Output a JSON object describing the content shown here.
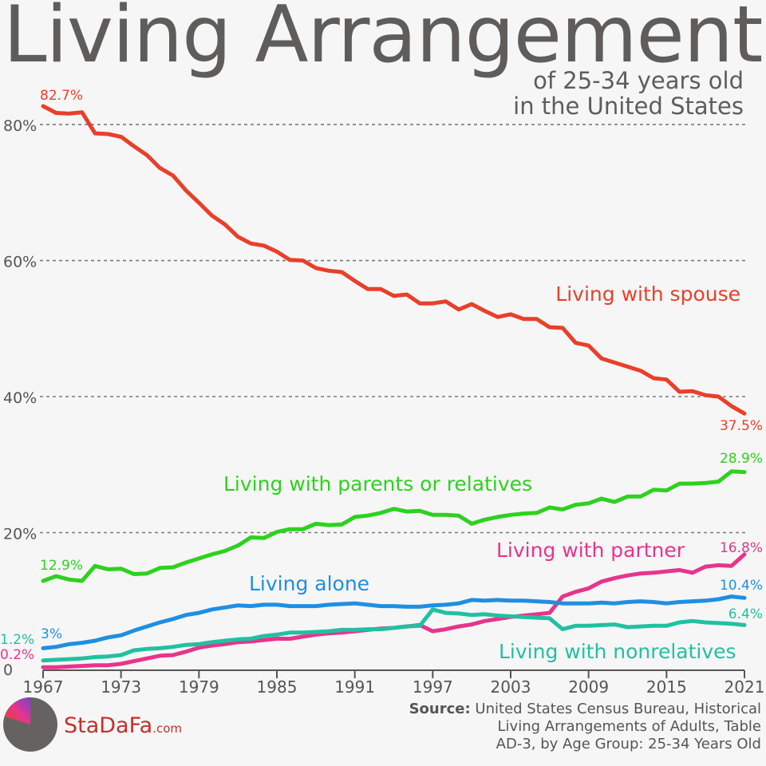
{
  "title": "Living Arrangements",
  "subtitle": [
    "of 25-34 years old",
    "in the United States"
  ],
  "brand": {
    "name": "StaDaFa",
    "suffix": ".com"
  },
  "source": {
    "label": "Source:",
    "lines": [
      "United States Census Bureau, Historical",
      "Living Arrangements of Adults, Table",
      "AD-3, by Age Group: 25-34 Years Old"
    ]
  },
  "chart_data": {
    "type": "line",
    "xlim": [
      1967,
      2021
    ],
    "ylim": [
      0,
      82.7
    ],
    "x_ticks": [
      1967,
      1973,
      1979,
      1985,
      1991,
      1997,
      2003,
      2009,
      2015,
      2021
    ],
    "y_ticks": [
      {
        "value": 0,
        "label": "0"
      },
      {
        "value": 20,
        "label": "20%"
      },
      {
        "value": 40,
        "label": "40%"
      },
      {
        "value": 60,
        "label": "60%"
      },
      {
        "value": 80,
        "label": "80%"
      }
    ],
    "grid": "horizontal dashed",
    "legend": "inline labels",
    "x": [
      1967,
      1968,
      1969,
      1970,
      1971,
      1972,
      1973,
      1974,
      1975,
      1976,
      1977,
      1978,
      1979,
      1980,
      1981,
      1982,
      1983,
      1984,
      1985,
      1986,
      1987,
      1988,
      1989,
      1990,
      1991,
      1992,
      1993,
      1994,
      1995,
      1996,
      1997,
      1998,
      1999,
      2000,
      2001,
      2002,
      2003,
      2004,
      2005,
      2006,
      2007,
      2008,
      2009,
      2010,
      2011,
      2012,
      2013,
      2014,
      2015,
      2016,
      2017,
      2018,
      2019,
      2020,
      2021
    ],
    "series": [
      {
        "name": "Living with spouse",
        "color": "#e8402a",
        "values": [
          82.7,
          81.7,
          81.6,
          81.8,
          78.7,
          78.6,
          78.2,
          76.8,
          75.5,
          73.6,
          72.5,
          70.3,
          68.5,
          66.6,
          65.3,
          63.5,
          62.5,
          62.2,
          61.3,
          60.1,
          60.0,
          58.9,
          58.5,
          58.3,
          57.0,
          55.8,
          55.8,
          54.8,
          55.0,
          53.7,
          53.7,
          54.0,
          52.8,
          53.6,
          52.6,
          51.7,
          52.1,
          51.4,
          51.4,
          50.2,
          50.1,
          47.9,
          47.5,
          45.6,
          45.0,
          44.4,
          43.8,
          42.7,
          42.5,
          40.7,
          40.8,
          40.2,
          40.0,
          38.6,
          37.5
        ],
        "start_label": "82.7%",
        "end_label": "37.5%"
      },
      {
        "name": "Living with parents or relatives",
        "color": "#2ed11f",
        "values": [
          12.9,
          13.6,
          13.1,
          12.9,
          15.1,
          14.6,
          14.7,
          13.9,
          14.0,
          14.8,
          14.9,
          15.6,
          16.2,
          16.8,
          17.3,
          18.1,
          19.3,
          19.2,
          20.1,
          20.5,
          20.5,
          21.3,
          21.1,
          21.2,
          22.3,
          22.5,
          22.9,
          23.5,
          23.1,
          23.2,
          22.6,
          22.6,
          22.5,
          21.3,
          21.9,
          22.3,
          22.6,
          22.8,
          22.9,
          23.7,
          23.4,
          24.1,
          24.3,
          25.0,
          24.5,
          25.3,
          25.3,
          26.3,
          26.2,
          27.2,
          27.2,
          27.3,
          27.5,
          29.0,
          28.9
        ],
        "start_label": "12.9%",
        "end_label": "28.9%"
      },
      {
        "name": "Living with partner",
        "color": "#e8348d",
        "values": [
          0.2,
          0.2,
          0.3,
          0.4,
          0.5,
          0.5,
          0.7,
          1.1,
          1.5,
          1.9,
          2.0,
          2.5,
          3.1,
          3.4,
          3.6,
          3.9,
          4.0,
          4.2,
          4.4,
          4.4,
          4.7,
          5.0,
          5.2,
          5.3,
          5.5,
          5.7,
          5.9,
          6.0,
          6.2,
          6.4,
          5.5,
          5.8,
          6.2,
          6.5,
          7.0,
          7.3,
          7.6,
          7.8,
          8.0,
          8.2,
          10.6,
          11.3,
          11.8,
          12.8,
          13.3,
          13.7,
          14.0,
          14.1,
          14.3,
          14.5,
          14.1,
          15.0,
          15.2,
          15.1,
          16.8
        ],
        "start_label": "0.2%",
        "end_label": "16.8%"
      },
      {
        "name": "Living alone",
        "color": "#1f8fe3",
        "values": [
          3.0,
          3.2,
          3.6,
          3.8,
          4.1,
          4.6,
          4.9,
          5.6,
          6.2,
          6.8,
          7.3,
          7.9,
          8.2,
          8.7,
          9.0,
          9.3,
          9.2,
          9.4,
          9.4,
          9.2,
          9.2,
          9.2,
          9.4,
          9.5,
          9.6,
          9.4,
          9.2,
          9.2,
          9.1,
          9.1,
          9.3,
          9.4,
          9.6,
          10.1,
          10.0,
          10.1,
          10.0,
          10.0,
          9.9,
          9.8,
          9.6,
          9.6,
          9.6,
          9.7,
          9.6,
          9.8,
          9.9,
          9.8,
          9.6,
          9.8,
          9.9,
          10.0,
          10.2,
          10.6,
          10.4
        ],
        "start_label": "3%",
        "end_label": "10.4%"
      },
      {
        "name": "Living with nonrelatives",
        "color": "#22c0a2",
        "values": [
          1.2,
          1.3,
          1.4,
          1.5,
          1.7,
          1.8,
          2.0,
          2.7,
          2.9,
          3.0,
          3.2,
          3.5,
          3.6,
          3.9,
          4.1,
          4.3,
          4.4,
          4.8,
          5.0,
          5.3,
          5.3,
          5.4,
          5.5,
          5.7,
          5.7,
          5.8,
          5.8,
          6.0,
          6.2,
          6.3,
          8.7,
          8.2,
          8.1,
          7.9,
          8.0,
          7.8,
          7.7,
          7.6,
          7.5,
          7.4,
          5.8,
          6.3,
          6.3,
          6.4,
          6.5,
          6.1,
          6.2,
          6.3,
          6.3,
          6.8,
          7.0,
          6.8,
          6.7,
          6.6,
          6.4
        ],
        "start_label": "1.2%",
        "end_label": "6.4%"
      }
    ]
  }
}
